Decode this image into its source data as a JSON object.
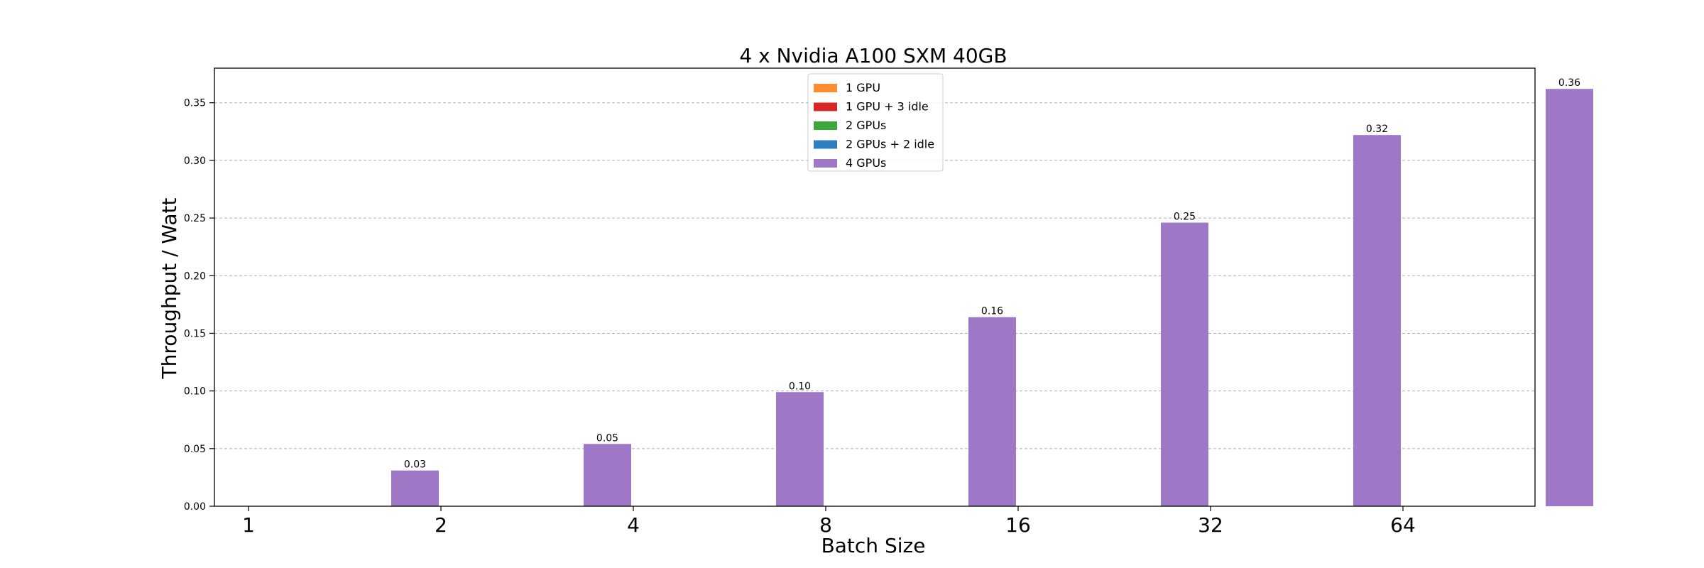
{
  "chart_data": {
    "type": "bar",
    "title": "4 x Nvidia A100 SXM 40GB",
    "xlabel": "Batch Size",
    "ylabel": "Throughput / Watt",
    "categories": [
      "1",
      "2",
      "4",
      "8",
      "16",
      "32",
      "64"
    ],
    "ylim": [
      0,
      0.38
    ],
    "yticks": [
      "0.00",
      "0.05",
      "0.10",
      "0.15",
      "0.20",
      "0.25",
      "0.30",
      "0.35"
    ],
    "grid": "y-dashed",
    "legend_position": "top-center",
    "series": [
      {
        "name": "1 GPU",
        "color": "#ff8c2e",
        "values": [
          null,
          null,
          null,
          null,
          null,
          null,
          null
        ]
      },
      {
        "name": "1 GPU + 3 idle",
        "color": "#d62728",
        "values": [
          null,
          null,
          null,
          null,
          null,
          null,
          null
        ]
      },
      {
        "name": "2 GPUs",
        "color": "#3aa83a",
        "values": [
          null,
          null,
          null,
          null,
          null,
          null,
          null
        ]
      },
      {
        "name": "2 GPUs + 2 idle",
        "color": "#2f7fbf",
        "values": [
          null,
          null,
          null,
          null,
          null,
          null,
          null
        ]
      },
      {
        "name": "4 GPUs",
        "color": "#9e77c6",
        "values": [
          0.031,
          0.054,
          0.099,
          0.164,
          0.246,
          0.322,
          0.362
        ]
      }
    ],
    "data_labels": [
      "0.03",
      "0.05",
      "0.10",
      "0.16",
      "0.25",
      "0.32",
      "0.36"
    ]
  }
}
